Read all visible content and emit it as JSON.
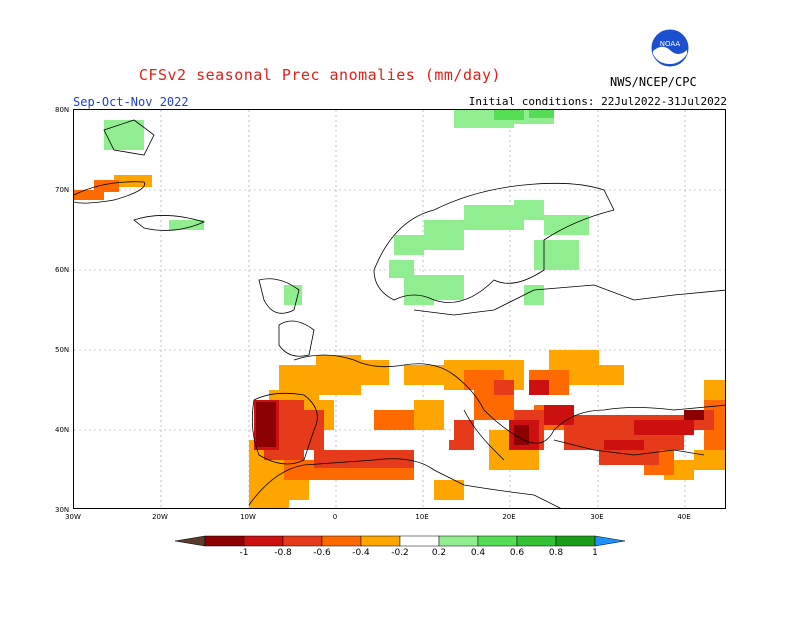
{
  "header": {
    "title": "CFSv2 seasonal Prec anomalies (mm/day)",
    "season": "Sep-Oct-Nov 2022",
    "initial_conditions": "Initial conditions: 22Jul2022-31Jul2022",
    "agency": "NWS/NCEP/CPC",
    "logo_text": "NOAA"
  },
  "map": {
    "lat_labels": [
      "80N",
      "70N",
      "60N",
      "50N",
      "40N",
      "30N"
    ],
    "lon_labels": [
      "30W",
      "20W",
      "10W",
      "0",
      "10E",
      "20E",
      "30E",
      "40E"
    ]
  },
  "legend": {
    "colors": [
      "#5c3a2e",
      "#8b0000",
      "#cc1010",
      "#e63b1a",
      "#ff6a00",
      "#ffa500",
      "#ffffff",
      "#90ee90",
      "#55dd55",
      "#33c233",
      "#1a9e1a",
      "#1e90ff"
    ],
    "ticks": [
      "-1",
      "-0.8",
      "-0.6",
      "-0.4",
      "-0.2",
      "0.2",
      "0.4",
      "0.6",
      "0.8",
      "1"
    ],
    "anomaly_colors": {
      "dry_light": "#ffa500",
      "dry_moderate": "#ff6a00",
      "dry_strong": "#e63b1a",
      "dry_very_strong": "#cc1010",
      "dry_extreme": "#8b0000",
      "wet_light": "#90ee90"
    }
  }
}
